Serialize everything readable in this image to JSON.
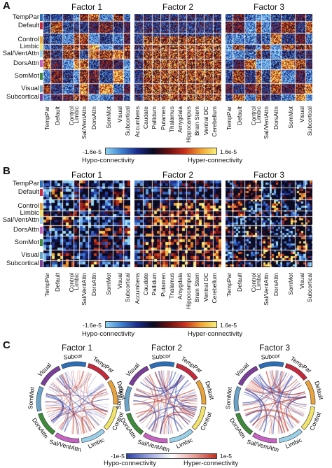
{
  "panels": [
    {
      "letter": "A",
      "factors": [
        "Factor 1",
        "Factor 2",
        "Factor 3"
      ],
      "colorbar": {
        "min": "-1.6e-5",
        "max": "1.6e-5",
        "left_label": "Hypo-connectivity",
        "right_label": "Hyper-connectivity"
      }
    },
    {
      "letter": "B",
      "factors": [
        "Factor 1",
        "Factor 2",
        "Factor 3"
      ],
      "colorbar": {
        "min": "-1.6e-5",
        "max": "1.6e-5",
        "left_label": "Hypo-connectivity",
        "right_label": "Hyper-connectivity"
      }
    },
    {
      "letter": "C",
      "factors": [
        "Factor 1",
        "Factor 2",
        "Factor 3"
      ],
      "colorbar": {
        "min": "-1e-5",
        "max": "1e-5",
        "left_label": "Hypo-connectivity",
        "right_label": "Hyper-connectivity"
      }
    }
  ],
  "networks": [
    "TempPar",
    "Default",
    "Control",
    "Limbic",
    "Sal/VentAttn",
    "DorsAttn",
    "SomMot",
    "Visual",
    "Subcortical"
  ],
  "subcortical": [
    "Accumbens",
    "Caudate",
    "Pallidum",
    "Putamen",
    "Thalamus",
    "Amygdala",
    "Hippocampus",
    "Brain Stem",
    "Ventral DC",
    "Cerebellum"
  ],
  "circle_labels": [
    "Subcor",
    "TempPar",
    "Default",
    "Control",
    "Limbic",
    "Sal/VentAttn",
    "DorsAttn",
    "SomMot",
    "Visual"
  ],
  "colors": {
    "hypo": "#2c3fa8",
    "hyper": "#c0301e",
    "network_colors": [
      "#2b6fb7",
      "#c8283c",
      "#e8a33a",
      "#f2e36b",
      "#9ad0e8",
      "#c763c2",
      "#3e8a3a",
      "#6aa3c8",
      "#7b3d9a"
    ]
  }
}
